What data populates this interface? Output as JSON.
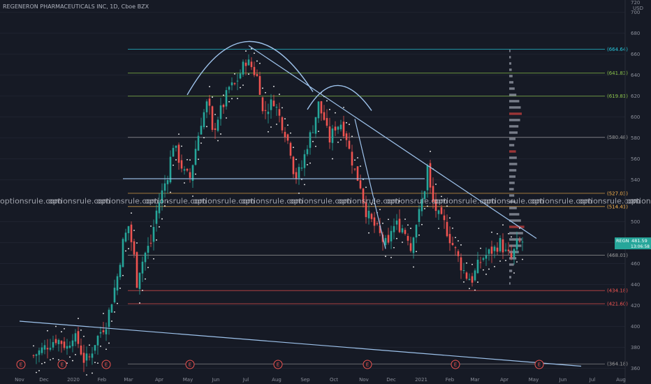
{
  "chart_data": {
    "type": "candlestick",
    "title": "REGENERON PHARMACEUTICALS INC, 1D, Cboe BZX",
    "currency": "USD",
    "ylim": [
      360,
      720
    ],
    "y_ticks": [
      360,
      380,
      400,
      420,
      440,
      460,
      480,
      500,
      520,
      540,
      560,
      580,
      600,
      620,
      640,
      660,
      680,
      700
    ],
    "y_tick_labels": [
      "360",
      "380",
      "400",
      "420",
      "440",
      "460",
      "480",
      "500",
      "520",
      "540",
      "560",
      "580",
      "600",
      "620",
      "640",
      "660",
      "680",
      "700"
    ],
    "top_tick_label": "720",
    "x_tick_labels": [
      "Nov",
      "Dec",
      "2020",
      "Feb",
      "Mar",
      "Apr",
      "May",
      "Jun",
      "Jul",
      "Aug",
      "Sep",
      "Oct",
      "Nov",
      "Dec",
      "2021",
      "Feb",
      "Mar",
      "Apr",
      "May",
      "Jun",
      "Jul",
      "Aug"
    ],
    "horizontal_levels": [
      {
        "value": 664.64,
        "label": "(664.64)",
        "color": "#26c6da"
      },
      {
        "value": 641.83,
        "label": "(641.83)",
        "color": "#8bc34a"
      },
      {
        "value": 619.81,
        "label": "(619.81)",
        "color": "#8bc34a"
      },
      {
        "value": 580.48,
        "label": "(580.48)",
        "color": "#9e9e9e"
      },
      {
        "value": 527.03,
        "label": "(527.03)",
        "color": "#ffb74d"
      },
      {
        "value": 514.41,
        "label": "(514.41)",
        "color": "#ffb74d"
      },
      {
        "value": 468.01,
        "label": "(468.01)",
        "color": "#9e9e9e"
      },
      {
        "value": 434.18,
        "label": "(434.18)",
        "color": "#ef5350"
      },
      {
        "value": 421.6,
        "label": "(421.60)",
        "color": "#ef5350"
      },
      {
        "value": 364.18,
        "label": "(364.18)",
        "color": "#9e9e9e"
      }
    ],
    "last_price": {
      "symbol": "REGN",
      "value": "481.59",
      "countdown": "13:06:58"
    },
    "earnings_markers": [
      "E",
      "E",
      "E",
      "E",
      "E",
      "E",
      "E",
      "E"
    ],
    "price_path": [
      [
        0,
        372
      ],
      [
        3,
        378
      ],
      [
        6,
        384
      ],
      [
        8,
        388
      ],
      [
        10,
        385
      ],
      [
        12,
        380
      ],
      [
        14,
        392
      ],
      [
        16,
        384
      ],
      [
        18,
        368
      ],
      [
        20,
        370
      ],
      [
        22,
        385
      ],
      [
        24,
        395
      ],
      [
        26,
        403
      ],
      [
        28,
        425
      ],
      [
        30,
        448
      ],
      [
        32,
        480
      ],
      [
        34,
        496
      ],
      [
        36,
        466
      ],
      [
        37,
        442
      ],
      [
        38,
        455
      ],
      [
        40,
        470
      ],
      [
        42,
        480
      ],
      [
        44,
        510
      ],
      [
        46,
        528
      ],
      [
        48,
        545
      ],
      [
        49,
        560
      ],
      [
        50,
        574
      ],
      [
        52,
        560
      ],
      [
        54,
        546
      ],
      [
        56,
        542
      ],
      [
        58,
        570
      ],
      [
        60,
        596
      ],
      [
        62,
        612
      ],
      [
        63,
        606
      ],
      [
        64,
        584
      ],
      [
        66,
        600
      ],
      [
        68,
        612
      ],
      [
        70,
        628
      ],
      [
        72,
        630
      ],
      [
        74,
        642
      ],
      [
        76,
        654
      ],
      [
        78,
        648
      ],
      [
        80,
        638
      ],
      [
        81,
        627
      ],
      [
        82,
        604
      ],
      [
        84,
        609
      ],
      [
        86,
        616
      ],
      [
        88,
        600
      ],
      [
        90,
        586
      ],
      [
        92,
        568
      ],
      [
        93,
        550
      ],
      [
        94,
        543
      ],
      [
        96,
        552
      ],
      [
        98,
        574
      ],
      [
        100,
        590
      ],
      [
        102,
        612
      ],
      [
        103,
        604
      ],
      [
        104,
        598
      ],
      [
        105,
        586
      ],
      [
        106,
        578
      ],
      [
        108,
        591
      ],
      [
        110,
        594
      ],
      [
        112,
        581
      ],
      [
        113,
        568
      ],
      [
        115,
        548
      ],
      [
        117,
        535
      ],
      [
        118,
        521
      ],
      [
        119,
        510
      ],
      [
        121,
        500
      ],
      [
        123,
        492
      ],
      [
        125,
        482
      ],
      [
        127,
        476
      ],
      [
        128,
        493
      ],
      [
        130,
        497
      ],
      [
        132,
        494
      ],
      [
        134,
        486
      ],
      [
        135,
        474
      ],
      [
        136,
        490
      ],
      [
        138,
        508
      ],
      [
        140,
        532
      ],
      [
        141,
        552
      ],
      [
        142,
        530
      ],
      [
        143,
        518
      ],
      [
        145,
        505
      ],
      [
        147,
        498
      ],
      [
        149,
        484
      ],
      [
        151,
        472
      ],
      [
        153,
        458
      ],
      [
        155,
        448
      ],
      [
        157,
        445
      ],
      [
        159,
        458
      ],
      [
        161,
        466
      ],
      [
        163,
        470
      ],
      [
        165,
        474
      ],
      [
        167,
        480
      ],
      [
        169,
        470
      ],
      [
        171,
        465
      ],
      [
        173,
        478
      ],
      [
        175,
        481
      ]
    ],
    "volume_profile": [
      {
        "price": 663,
        "volume": 0.06
      },
      {
        "price": 657,
        "volume": 0.08
      },
      {
        "price": 651,
        "volume": 0.1
      },
      {
        "price": 645,
        "volume": 0.12
      },
      {
        "price": 639,
        "volume": 0.16
      },
      {
        "price": 633,
        "volume": 0.2
      },
      {
        "price": 627,
        "volume": 0.26
      },
      {
        "price": 621,
        "volume": 0.34
      },
      {
        "price": 615,
        "volume": 0.48
      },
      {
        "price": 609,
        "volume": 0.55
      },
      {
        "price": 603,
        "volume": 0.6
      },
      {
        "price": 597,
        "volume": 0.52
      },
      {
        "price": 591,
        "volume": 0.44
      },
      {
        "price": 585,
        "volume": 0.4
      },
      {
        "price": 579,
        "volume": 0.3
      },
      {
        "price": 573,
        "volume": 0.24
      },
      {
        "price": 567,
        "volume": 0.32
      },
      {
        "price": 561,
        "volume": 0.36
      },
      {
        "price": 555,
        "volume": 0.38
      },
      {
        "price": 549,
        "volume": 0.34
      },
      {
        "price": 543,
        "volume": 0.3
      },
      {
        "price": 537,
        "volume": 0.26
      },
      {
        "price": 531,
        "volume": 0.22
      },
      {
        "price": 525,
        "volume": 0.24
      },
      {
        "price": 519,
        "volume": 0.3
      },
      {
        "price": 513,
        "volume": 0.36
      },
      {
        "price": 507,
        "volume": 0.48
      },
      {
        "price": 501,
        "volume": 0.56
      },
      {
        "price": 495,
        "volume": 0.72
      },
      {
        "price": 489,
        "volume": 0.66
      },
      {
        "price": 483,
        "volume": 0.6
      },
      {
        "price": 477,
        "volume": 0.58
      },
      {
        "price": 471,
        "volume": 0.46
      },
      {
        "price": 465,
        "volume": 0.34
      },
      {
        "price": 459,
        "volume": 0.22
      },
      {
        "price": 453,
        "volume": 0.14
      },
      {
        "price": 447,
        "volume": 0.1
      },
      {
        "price": 441,
        "volume": 0.06
      }
    ],
    "volume_profile_highlight_prices": [
      603,
      567,
      495
    ],
    "trend_lines": [
      {
        "from": [
          -5,
          405
        ],
        "to": [
          196,
          362
        ]
      },
      {
        "from": [
          77,
          668
        ],
        "to": [
          180,
          484
        ]
      },
      {
        "from": [
          115,
          598
        ],
        "to": [
          126,
          474
        ]
      }
    ],
    "neckline": {
      "from": [
        32,
        541
      ],
      "to": [
        140,
        541
      ]
    },
    "annotation_curves": [
      {
        "type": "arc",
        "start": [
          55,
          621
        ],
        "top": [
          77,
          672
        ],
        "end": [
          100,
          624
        ]
      },
      {
        "type": "arc",
        "start": [
          98,
          607
        ],
        "top": [
          109,
          630
        ],
        "end": [
          121,
          606
        ]
      }
    ],
    "watermark": "optionsrule.com",
    "watermark_repeat": 14
  }
}
